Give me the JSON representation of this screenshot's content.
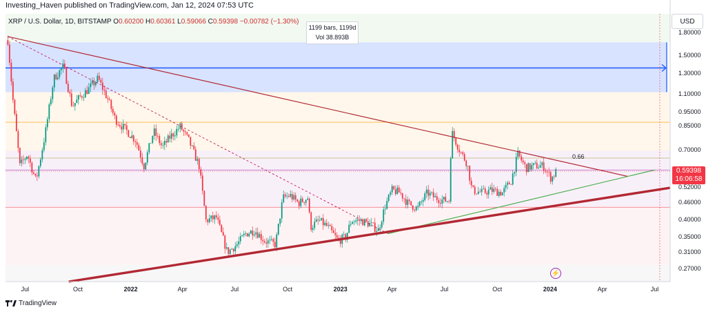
{
  "header": {
    "publisher_line": "Investing_Haven published on TradingView.com, Jan 12, 2024 07:53 UTC"
  },
  "symbol": {
    "name_line": "XRP / U.S. Dollar, 1D, BITSTAMP",
    "open_label": "O",
    "open": "0.60200",
    "high_label": "H",
    "high": "0.60361",
    "low_label": "L",
    "low": "0.59066",
    "close_label": "C",
    "close": "0.59398",
    "change": "−0.00782 (−1.30%)"
  },
  "tooltip": {
    "bars": "1199 bars, 1199d",
    "vol": "Vol 38.893B"
  },
  "currency_button": "USD",
  "last_price": {
    "value": "0.59398",
    "countdown": "16:06:58"
  },
  "annotation_label": "0.66",
  "footer": {
    "brand": "TradingView"
  },
  "colors": {
    "up": "#089981",
    "down": "#f23645",
    "trendline_dark": "#b22833",
    "trendline_green": "#4caf50",
    "blue_zone": "#2962ff"
  },
  "chart_data": {
    "type": "candlestick",
    "title": "XRP / U.S. Dollar, 1D, BITSTAMP",
    "yscale": "log",
    "ylim": [
      0.245,
      2.1
    ],
    "xlim": [
      "2021-05-28",
      "2024-07-28"
    ],
    "y_ticks": [
      "1.80000",
      "1.50000",
      "1.30000",
      "1.10000",
      "0.95000",
      "0.85000",
      "0.70000",
      "0.60000",
      "0.52000",
      "0.46000",
      "0.40000",
      "0.35000",
      "0.31000",
      "0.27000"
    ],
    "y_tick_values": [
      1.8,
      1.5,
      1.3,
      1.1,
      0.95,
      0.85,
      0.7,
      0.6,
      0.52,
      0.46,
      0.4,
      0.35,
      0.31,
      0.27
    ],
    "x_ticks": [
      {
        "label": "Jul",
        "date": "2021-07-01",
        "bold": false
      },
      {
        "label": "Oct",
        "date": "2021-10-01",
        "bold": false
      },
      {
        "label": "2022",
        "date": "2022-01-01",
        "bold": true
      },
      {
        "label": "Apr",
        "date": "2022-04-01",
        "bold": false
      },
      {
        "label": "Jul",
        "date": "2022-07-01",
        "bold": false
      },
      {
        "label": "Oct",
        "date": "2022-10-01",
        "bold": false
      },
      {
        "label": "2023",
        "date": "2023-01-01",
        "bold": true
      },
      {
        "label": "Apr",
        "date": "2023-04-01",
        "bold": false
      },
      {
        "label": "Jul",
        "date": "2023-07-01",
        "bold": false
      },
      {
        "label": "Oct",
        "date": "2023-10-01",
        "bold": false
      },
      {
        "label": "2024",
        "date": "2024-01-01",
        "bold": true
      },
      {
        "label": "Apr",
        "date": "2024-04-01",
        "bold": false
      },
      {
        "label": "Jul",
        "date": "2024-07-01",
        "bold": false
      }
    ],
    "price_path": [
      [
        "2021-06-01",
        1.7
      ],
      [
        "2021-06-10",
        1.05
      ],
      [
        "2021-06-22",
        0.62
      ],
      [
        "2021-07-05",
        0.68
      ],
      [
        "2021-07-20",
        0.55
      ],
      [
        "2021-08-05",
        0.8
      ],
      [
        "2021-08-20",
        1.25
      ],
      [
        "2021-09-06",
        1.38
      ],
      [
        "2021-09-21",
        1.0
      ],
      [
        "2021-10-05",
        1.08
      ],
      [
        "2021-10-20",
        1.15
      ],
      [
        "2021-11-05",
        1.25
      ],
      [
        "2021-11-22",
        1.06
      ],
      [
        "2021-12-05",
        0.9
      ],
      [
        "2021-12-20",
        0.84
      ],
      [
        "2022-01-10",
        0.76
      ],
      [
        "2022-01-24",
        0.62
      ],
      [
        "2022-02-10",
        0.82
      ],
      [
        "2022-02-25",
        0.72
      ],
      [
        "2022-03-10",
        0.78
      ],
      [
        "2022-03-28",
        0.85
      ],
      [
        "2022-04-12",
        0.76
      ],
      [
        "2022-04-30",
        0.62
      ],
      [
        "2022-05-12",
        0.4
      ],
      [
        "2022-05-30",
        0.41
      ],
      [
        "2022-06-18",
        0.31
      ],
      [
        "2022-07-05",
        0.33
      ],
      [
        "2022-07-20",
        0.36
      ],
      [
        "2022-08-05",
        0.37
      ],
      [
        "2022-08-22",
        0.34
      ],
      [
        "2022-09-10",
        0.33
      ],
      [
        "2022-09-23",
        0.48
      ],
      [
        "2022-10-05",
        0.49
      ],
      [
        "2022-10-20",
        0.46
      ],
      [
        "2022-11-05",
        0.48
      ],
      [
        "2022-11-10",
        0.38
      ],
      [
        "2022-11-25",
        0.4
      ],
      [
        "2022-12-10",
        0.38
      ],
      [
        "2022-12-28",
        0.34
      ],
      [
        "2023-01-10",
        0.35
      ],
      [
        "2023-01-20",
        0.4
      ],
      [
        "2023-02-05",
        0.4
      ],
      [
        "2023-02-20",
        0.39
      ],
      [
        "2023-03-08",
        0.37
      ],
      [
        "2023-03-20",
        0.45
      ],
      [
        "2023-04-01",
        0.51
      ],
      [
        "2023-04-15",
        0.5
      ],
      [
        "2023-04-28",
        0.46
      ],
      [
        "2023-05-15",
        0.44
      ],
      [
        "2023-06-01",
        0.5
      ],
      [
        "2023-06-15",
        0.48
      ],
      [
        "2023-06-30",
        0.47
      ],
      [
        "2023-07-10",
        0.47
      ],
      [
        "2023-07-13",
        0.82
      ],
      [
        "2023-07-28",
        0.7
      ],
      [
        "2023-08-10",
        0.63
      ],
      [
        "2023-08-18",
        0.51
      ],
      [
        "2023-09-05",
        0.5
      ],
      [
        "2023-09-20",
        0.51
      ],
      [
        "2023-10-10",
        0.5
      ],
      [
        "2023-10-25",
        0.55
      ],
      [
        "2023-11-06",
        0.68
      ],
      [
        "2023-11-20",
        0.61
      ],
      [
        "2023-12-05",
        0.62
      ],
      [
        "2023-12-20",
        0.62
      ],
      [
        "2024-01-03",
        0.56
      ],
      [
        "2024-01-12",
        0.594
      ]
    ],
    "reference_lines": [
      {
        "name": "blue_level",
        "price": 1.36
      },
      {
        "name": "orange_level",
        "price": 0.88
      },
      {
        "name": "olive_level",
        "price": 0.66
      },
      {
        "name": "purple_level",
        "price": 0.6
      },
      {
        "name": "red_level",
        "price": 0.445
      }
    ],
    "zones": [
      {
        "name": "blue_zone",
        "from": 1.12,
        "to": 1.67
      },
      {
        "name": "orange_zone",
        "from": 0.7,
        "to": 1.12
      },
      {
        "name": "purple_zone",
        "from": 0.445,
        "to": 0.7
      },
      {
        "name": "red_zone",
        "from": 0.28,
        "to": 0.445
      }
    ],
    "trendlines": [
      {
        "name": "descending_resistance",
        "from": [
          "2021-06-01",
          1.75
        ],
        "to": [
          "2024-05-15",
          0.57
        ]
      },
      {
        "name": "dashed_resistance",
        "from": [
          "2021-06-01",
          1.75
        ],
        "to": [
          "2023-03-25",
          0.36
        ]
      },
      {
        "name": "green_support",
        "from": [
          "2023-03-25",
          0.36
        ],
        "to": [
          "2024-07-01",
          0.6
        ]
      },
      {
        "name": "major_support",
        "from": [
          "2021-09-15",
          0.245
        ],
        "to": [
          "2024-07-28",
          0.52
        ]
      }
    ]
  }
}
